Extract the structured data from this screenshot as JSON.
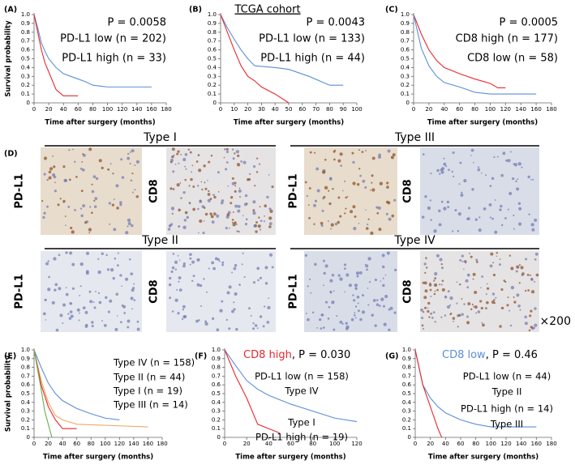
{
  "chart_data": [
    {
      "type": "line",
      "panel_label": "(A)",
      "y_label": "Survival probability",
      "x_label": "Time after surgery (months)",
      "annotation": "P = 0.0058",
      "xlim": [
        0,
        180
      ],
      "xticks": [
        0,
        20,
        40,
        60,
        80,
        100,
        120,
        140,
        160,
        180
      ],
      "ylim": [
        0,
        1
      ],
      "yticks": [
        0,
        0.1,
        0.2,
        0.3,
        0.4,
        0.5,
        0.6,
        0.7,
        0.8,
        0.9,
        {
          "value": 1,
          "label": "1.0"
        }
      ],
      "series": [
        {
          "name": "PD-L1 low (n = 202)",
          "color": "#5b8fd6",
          "x": [
            0,
            5,
            10,
            15,
            20,
            30,
            40,
            50,
            60,
            70,
            80,
            100,
            160
          ],
          "values": [
            1,
            0.85,
            0.68,
            0.58,
            0.5,
            0.4,
            0.33,
            0.3,
            0.27,
            0.24,
            0.2,
            0.18,
            0.18
          ]
        },
        {
          "name": "PD-L1 high (n = 33)",
          "color": "#e8282e",
          "x": [
            0,
            5,
            10,
            15,
            20,
            25,
            30,
            40,
            60
          ],
          "values": [
            1,
            0.8,
            0.6,
            0.45,
            0.35,
            0.25,
            0.15,
            0.08,
            0.08
          ]
        }
      ]
    },
    {
      "type": "line",
      "panel_label": "(B)",
      "cohort": "TCGA cohort",
      "x_label": "Time after surgery (months)",
      "annotation": "P = 0.0043",
      "xlim": [
        0,
        100
      ],
      "xticks": [
        0,
        10,
        20,
        30,
        40,
        50,
        60,
        70,
        80,
        90,
        100
      ],
      "ylim": [
        0,
        1
      ],
      "yticks": [
        0,
        0.1,
        0.2,
        0.3,
        0.4,
        0.5,
        0.6,
        0.7,
        0.8,
        0.9,
        {
          "value": 1,
          "label": "1.0"
        }
      ],
      "series": [
        {
          "name": "PD-L1 low (n = 133)",
          "color": "#5b8fd6",
          "x": [
            0,
            5,
            10,
            15,
            20,
            25,
            40,
            50,
            65,
            80,
            90
          ],
          "values": [
            1,
            0.85,
            0.72,
            0.6,
            0.5,
            0.42,
            0.4,
            0.38,
            0.3,
            0.2,
            0.2
          ]
        },
        {
          "name": "PD-L1 high (n = 44)",
          "color": "#e8282e",
          "x": [
            0,
            5,
            10,
            15,
            20,
            25,
            30,
            40,
            50
          ],
          "values": [
            1,
            0.8,
            0.6,
            0.42,
            0.3,
            0.25,
            0.18,
            0.1,
            0
          ]
        }
      ]
    },
    {
      "type": "line",
      "panel_label": "(C)",
      "x_label": "Time after surgery (months)",
      "annotation": "P = 0.0005",
      "xlim": [
        0,
        180
      ],
      "xticks": [
        0,
        20,
        40,
        60,
        80,
        100,
        120,
        140,
        160,
        180
      ],
      "ylim": [
        0,
        1
      ],
      "yticks": [
        0,
        0.1,
        0.2,
        0.3,
        0.4,
        0.5,
        0.6,
        0.7,
        0.8,
        0.9,
        {
          "value": 1,
          "label": "1.0"
        }
      ],
      "series": [
        {
          "name": "CD8 high (n = 177)",
          "color": "#e8282e",
          "x": [
            0,
            10,
            20,
            30,
            40,
            60,
            80,
            100,
            110,
            120
          ],
          "values": [
            1,
            0.78,
            0.6,
            0.48,
            0.4,
            0.33,
            0.27,
            0.22,
            0.17,
            0.17
          ]
        },
        {
          "name": "CD8 low (n = 58)",
          "color": "#5b8fd6",
          "x": [
            0,
            10,
            20,
            30,
            40,
            60,
            80,
            100,
            160
          ],
          "values": [
            1,
            0.62,
            0.42,
            0.3,
            0.23,
            0.18,
            0.12,
            0.1,
            0.1
          ]
        }
      ]
    },
    {
      "type": "line",
      "panel_label": "(E)",
      "y_label": "Survival probability",
      "x_label": "Time after surgery (months)",
      "xlim": [
        0,
        180
      ],
      "xticks": [
        0,
        20,
        40,
        60,
        80,
        100,
        120,
        140,
        160,
        180
      ],
      "ylim": [
        0,
        1
      ],
      "yticks": [
        0,
        0.1,
        0.2,
        0.3,
        0.4,
        0.5,
        0.6,
        0.7,
        0.8,
        0.9,
        {
          "value": 1,
          "label": "1.0"
        }
      ],
      "series": [
        {
          "name": "Type IV (n = 158)",
          "color": "#5b8fd6",
          "x": [
            0,
            10,
            20,
            30,
            40,
            60,
            80,
            100,
            120
          ],
          "values": [
            1,
            0.8,
            0.62,
            0.5,
            0.42,
            0.33,
            0.27,
            0.22,
            0.2
          ]
        },
        {
          "name": "Type II (n = 44)",
          "color": "#f0a868",
          "x": [
            0,
            10,
            20,
            30,
            40,
            60,
            160
          ],
          "values": [
            1,
            0.65,
            0.4,
            0.25,
            0.2,
            0.15,
            0.12
          ]
        },
        {
          "name": "Type I (n = 19)",
          "color": "#e8282e",
          "x": [
            0,
            10,
            20,
            30,
            40,
            60
          ],
          "values": [
            1,
            0.6,
            0.35,
            0.2,
            0.1,
            0.1
          ]
        },
        {
          "name": "Type III (n = 14)",
          "color": "#6ab04c",
          "x": [
            0,
            10,
            15,
            20,
            25
          ],
          "values": [
            1,
            0.55,
            0.3,
            0.15,
            0
          ]
        }
      ]
    },
    {
      "type": "line",
      "panel_label": "(F)",
      "title": "CD8 high",
      "title_color": "#e8282e",
      "annotation": ", P = 0.030",
      "x_label": "Time after surgery (months)",
      "xlim": [
        0,
        120
      ],
      "xticks": [
        0,
        20,
        40,
        60,
        80,
        100,
        120
      ],
      "ylim": [
        0,
        1
      ],
      "yticks": [
        0,
        0.1,
        0.2,
        0.3,
        0.4,
        0.5,
        0.6,
        0.7,
        0.8,
        0.9,
        {
          "value": 1,
          "label": "1.0"
        }
      ],
      "series": [
        {
          "name": "PD-L1 low (n = 158)",
          "note": "Type IV",
          "note_color": "#5b8fd6",
          "color": "#5b8fd6",
          "x": [
            0,
            10,
            20,
            30,
            40,
            60,
            80,
            100,
            120
          ],
          "values": [
            1,
            0.82,
            0.65,
            0.55,
            0.48,
            0.38,
            0.3,
            0.22,
            0.18
          ]
        },
        {
          "name": "PD-L1 high (n = 19)",
          "note": "Type I",
          "note_color": "#e8282e",
          "color": "#e8282e",
          "x": [
            0,
            10,
            20,
            25,
            30,
            40,
            50
          ],
          "values": [
            1,
            0.7,
            0.45,
            0.3,
            0.15,
            0.1,
            0.05
          ]
        }
      ]
    },
    {
      "type": "line",
      "panel_label": "(G)",
      "title": "CD8 low",
      "title_color": "#5b8fd6",
      "annotation": ", P = 0.46",
      "x_label": "Time after surgery (months)",
      "xlim": [
        0,
        180
      ],
      "xticks": [
        0,
        20,
        40,
        60,
        80,
        100,
        120,
        140,
        160,
        180
      ],
      "ylim": [
        0,
        1
      ],
      "yticks": [
        0,
        0.1,
        0.2,
        0.3,
        0.4,
        0.5,
        0.6,
        0.7,
        0.8,
        0.9,
        {
          "value": 1,
          "label": "1.0"
        }
      ],
      "series": [
        {
          "name": "PD-L1 low (n = 44)",
          "note": "Type II",
          "note_color": "#f0a868",
          "color": "#5b8fd6",
          "x": [
            0,
            10,
            20,
            30,
            40,
            60,
            80,
            100,
            160
          ],
          "values": [
            1,
            0.6,
            0.45,
            0.35,
            0.28,
            0.2,
            0.15,
            0.12,
            0.12
          ]
        },
        {
          "name": "PD-L1 high (n = 14)",
          "note": "Type III",
          "note_color": "#6ab04c",
          "color": "#e8282e",
          "x": [
            0,
            10,
            20,
            30,
            35
          ],
          "values": [
            1,
            0.6,
            0.35,
            0.1,
            0
          ]
        }
      ]
    }
  ],
  "figure_d": {
    "panel_label": "(D)",
    "magnification": "×200",
    "groups": [
      {
        "title": "Type I",
        "color": "#e8282e",
        "stains": [
          "PD-L1",
          "CD8"
        ]
      },
      {
        "title": "Type III",
        "color": "#6ab04c",
        "stains": [
          "PD-L1",
          "CD8"
        ]
      },
      {
        "title": "Type II",
        "color": "#f0a868",
        "stains": [
          "PD-L1",
          "CD8"
        ]
      },
      {
        "title": "Type IV",
        "color": "#5b8fd6",
        "stains": [
          "PD-L1",
          "CD8"
        ]
      }
    ]
  }
}
